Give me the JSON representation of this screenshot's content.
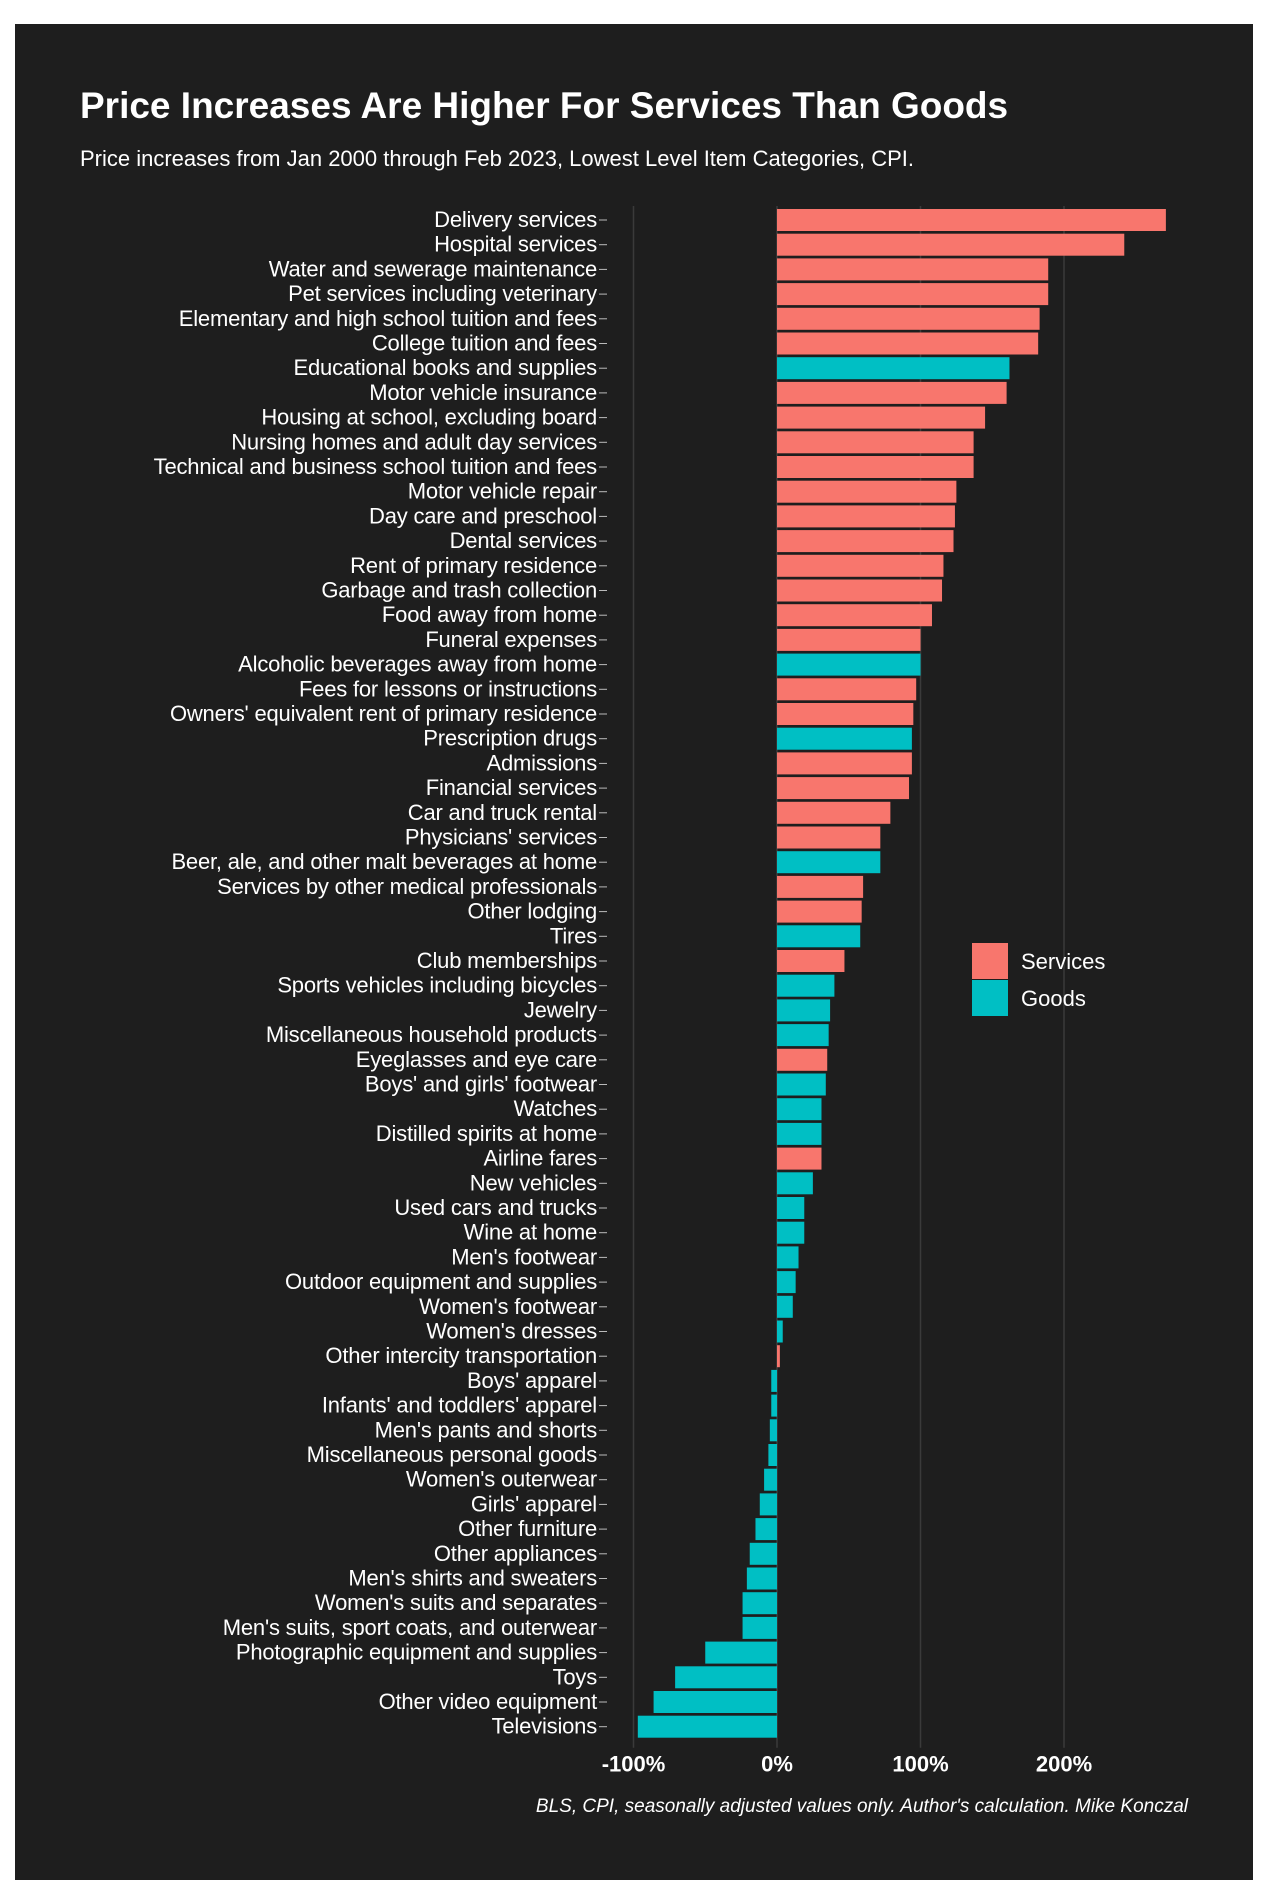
{
  "chart_data": {
    "type": "bar",
    "orientation": "horizontal",
    "title": "Price Increases Are Higher For Services Than Goods",
    "subtitle": "Price increases from Jan 2000 through Feb 2023, Lowest Level Item Categories, CPI.",
    "source": "BLS, CPI, seasonally adjusted values only. Author's calculation. Mike Konczal",
    "xlabel": "",
    "ylabel": "",
    "xlim": [
      -115,
      280
    ],
    "xticks": [
      -100,
      0,
      100,
      200
    ],
    "xtick_labels": [
      "-100%",
      "0%",
      "100%",
      "200%"
    ],
    "grid": true,
    "legend": {
      "placement": "right",
      "entries": [
        {
          "name": "Services",
          "color": "#f8766d"
        },
        {
          "name": "Goods",
          "color": "#00bfc4"
        }
      ]
    },
    "categories": [
      "Delivery services",
      "Hospital services",
      "Water and sewerage maintenance",
      "Pet services including veterinary",
      "Elementary and high school tuition and fees",
      "College tuition and fees",
      "Educational books and supplies",
      "Motor vehicle insurance",
      "Housing at school, excluding board",
      "Nursing homes and adult day services",
      "Technical and business school tuition and fees",
      "Motor vehicle repair",
      "Day care and preschool",
      "Dental services",
      "Rent of primary residence",
      "Garbage and trash collection",
      "Food away from home",
      "Funeral expenses",
      "Alcoholic beverages away from home",
      "Fees for lessons or instructions",
      "Owners' equivalent rent of primary residence",
      "Prescription drugs",
      "Admissions",
      "Financial services",
      "Car and truck rental",
      "Physicians' services",
      "Beer, ale, and other malt beverages at home",
      "Services by other medical professionals",
      "Other lodging",
      "Tires",
      "Club memberships",
      "Sports vehicles including bicycles",
      "Jewelry",
      "Miscellaneous household products",
      "Eyeglasses and eye care",
      "Boys' and girls' footwear",
      "Watches",
      "Distilled spirits at home",
      "Airline fares",
      "New vehicles",
      "Used cars and trucks",
      "Wine at home",
      "Men's footwear",
      "Outdoor equipment and supplies",
      "Women's footwear",
      "Women's dresses",
      "Other intercity transportation",
      "Boys' apparel",
      "Infants' and toddlers' apparel",
      "Men's pants and shorts",
      "Miscellaneous personal goods",
      "Women's outerwear",
      "Girls' apparel",
      "Other furniture",
      "Other appliances",
      "Men's shirts and sweaters",
      "Women's suits and separates",
      "Men's suits, sport coats, and outerwear",
      "Photographic equipment and supplies",
      "Toys",
      "Other video equipment",
      "Televisions"
    ],
    "values": [
      271,
      242,
      189,
      189,
      183,
      182,
      162,
      160,
      145,
      137,
      137,
      125,
      124,
      123,
      116,
      115,
      108,
      100,
      100,
      97,
      95,
      94,
      94,
      92,
      79,
      72,
      72,
      60,
      59,
      58,
      47,
      40,
      37,
      36,
      35,
      34,
      31,
      31,
      31,
      25,
      19,
      19,
      15,
      13,
      11,
      4,
      2,
      -4,
      -4,
      -5,
      -6,
      -9,
      -12,
      -15,
      -19,
      -21,
      -24,
      -24,
      -50,
      -71,
      -86,
      -97
    ],
    "types": [
      "Services",
      "Services",
      "Services",
      "Services",
      "Services",
      "Services",
      "Goods",
      "Services",
      "Services",
      "Services",
      "Services",
      "Services",
      "Services",
      "Services",
      "Services",
      "Services",
      "Services",
      "Services",
      "Goods",
      "Services",
      "Services",
      "Goods",
      "Services",
      "Services",
      "Services",
      "Services",
      "Goods",
      "Services",
      "Services",
      "Goods",
      "Services",
      "Goods",
      "Goods",
      "Goods",
      "Services",
      "Goods",
      "Goods",
      "Goods",
      "Services",
      "Goods",
      "Goods",
      "Goods",
      "Goods",
      "Goods",
      "Goods",
      "Goods",
      "Services",
      "Goods",
      "Goods",
      "Goods",
      "Goods",
      "Goods",
      "Goods",
      "Goods",
      "Goods",
      "Goods",
      "Goods",
      "Goods",
      "Goods",
      "Goods",
      "Goods",
      "Goods"
    ]
  }
}
